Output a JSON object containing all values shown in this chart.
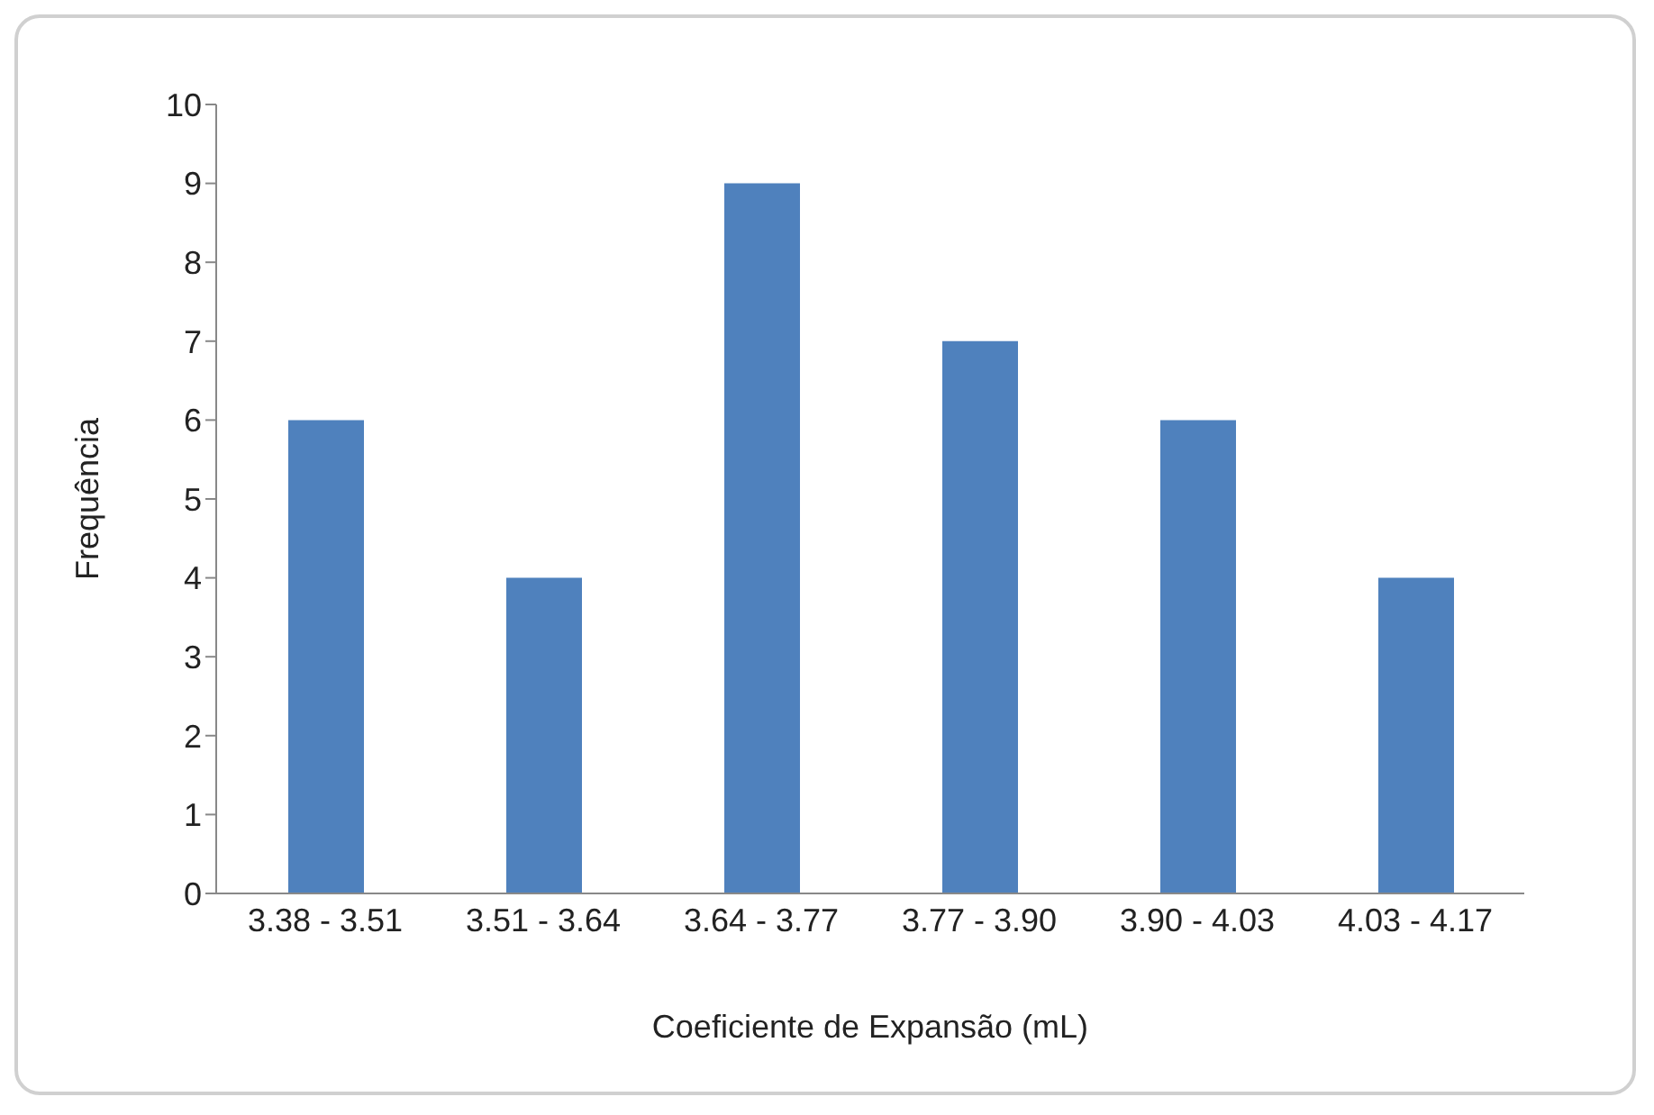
{
  "chart_data": {
    "type": "bar",
    "xlabel": "Coeficiente de Expansão (mL)",
    "ylabel": "Frequência",
    "categories": [
      "3.38 - 3.51",
      "3.51 - 3.64",
      "3.64 - 3.77",
      "3.77 - 3.90",
      "3.90 - 4.03",
      "4.03 - 4.17"
    ],
    "values": [
      6,
      4,
      9,
      7,
      6,
      4
    ],
    "color": "#4f81bd",
    "ylim": [
      0,
      10
    ],
    "yticks": [
      0,
      1,
      2,
      3,
      4,
      5,
      6,
      7,
      8,
      9,
      10
    ]
  }
}
